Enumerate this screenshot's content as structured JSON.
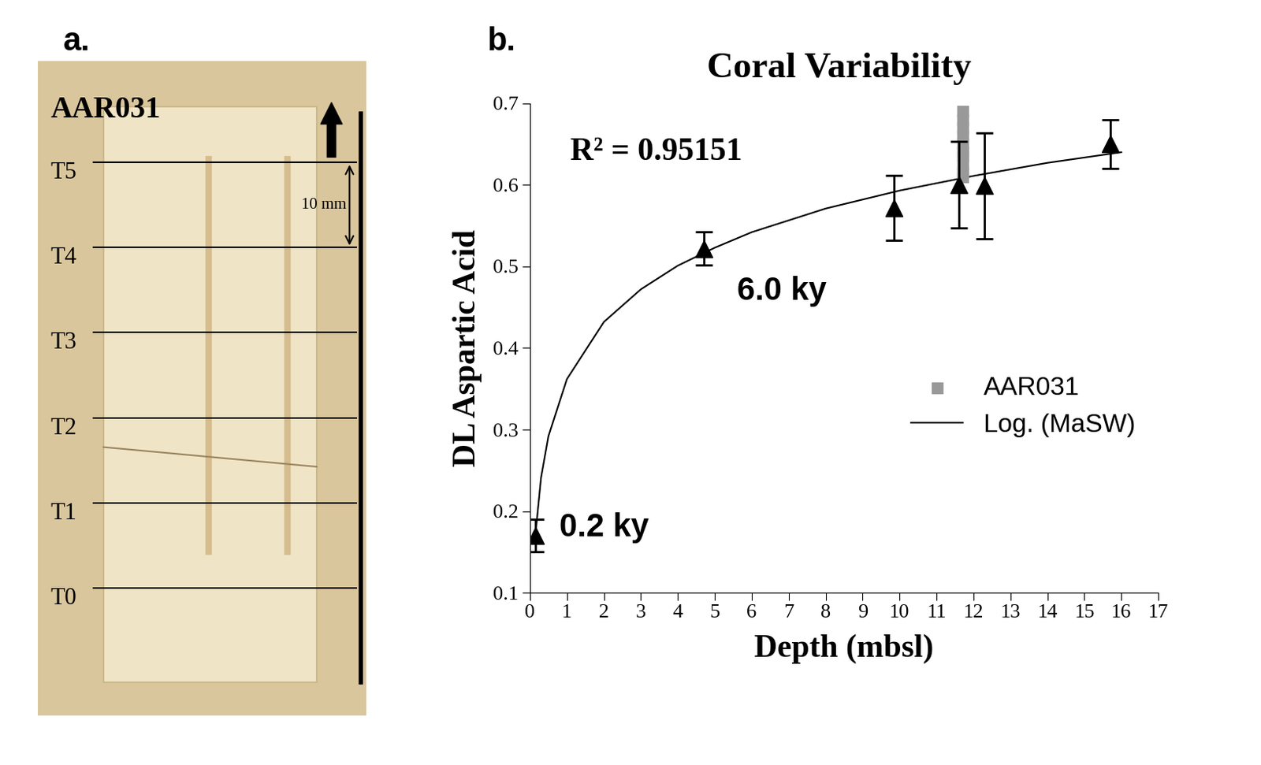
{
  "photo": {
    "panel_label": "a.",
    "sample": "AAR031",
    "transects": [
      "T5",
      "T4",
      "T3",
      "T2",
      "T1",
      "T0"
    ],
    "scale_label": "10 mm"
  },
  "chart_data": {
    "type": "scatter",
    "panel_label": "b.",
    "title": "Coral Variability",
    "x_label": "Depth (mbsl)",
    "y_label": "DL Aspartic Acid",
    "annotations": [
      "R² = 0.95151",
      "6.0 ky",
      "0.2 ky"
    ],
    "xlim": [
      0,
      17
    ],
    "xticks": [
      0,
      1,
      2,
      3,
      4,
      5,
      6,
      7,
      8,
      9,
      10,
      11,
      12,
      13,
      14,
      15,
      16,
      17
    ],
    "ylim": [
      0.1,
      0.7
    ],
    "yticks": [
      0.1,
      0.2,
      0.3,
      0.4,
      0.5,
      0.6,
      0.7
    ],
    "legend": "right",
    "series": [
      {
        "type": "scatter",
        "color": "#000000",
        "marker": "triangle",
        "x": [
          0.15,
          4.7,
          9.85,
          11.6,
          12.3,
          15.7
        ],
        "values": [
          0.17,
          0.522,
          0.572,
          0.6,
          0.599,
          0.65
        ],
        "error": [
          0.02,
          0.02,
          0.04,
          0.053,
          0.065,
          0.03
        ]
      },
      {
        "name": "AAR031",
        "type": "scatter",
        "color": "#999999",
        "marker": "square",
        "x": [
          11.7,
          11.7,
          11.7,
          11.7,
          11.7,
          11.7,
          11.7,
          11.7,
          11.7,
          11.7
        ],
        "values": [
          0.69,
          0.68,
          0.67,
          0.66,
          0.65,
          0.64,
          0.635,
          0.625,
          0.615,
          0.61
        ]
      },
      {
        "name": "Log. (MaSW)",
        "type": "line",
        "color": "#000000",
        "line_style": "solid",
        "x": [
          0.15,
          0.3,
          0.5,
          1,
          2,
          3,
          4,
          5,
          6,
          8,
          10,
          12,
          14,
          16
        ],
        "values": [
          0.172,
          0.241,
          0.292,
          0.362,
          0.432,
          0.472,
          0.501,
          0.523,
          0.542,
          0.571,
          0.593,
          0.611,
          0.627,
          0.64
        ]
      }
    ]
  }
}
